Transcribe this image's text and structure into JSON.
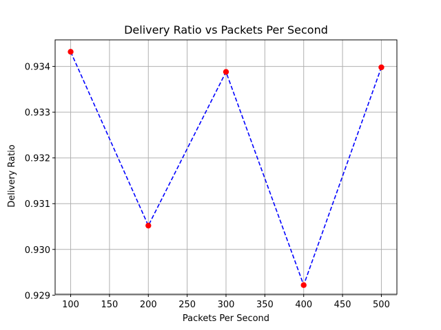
{
  "chart_data": {
    "type": "line",
    "title": "Delivery Ratio vs Packets Per Second",
    "xlabel": "Packets Per Second",
    "ylabel": "Delivery Ratio",
    "x": [
      100,
      200,
      300,
      400,
      500
    ],
    "series": [
      {
        "values": [
          0.93432,
          0.93052,
          0.93388,
          0.92922,
          0.93398
        ]
      }
    ],
    "xlim": [
      80,
      520
    ],
    "ylim": [
      0.92902,
      0.93458
    ],
    "xticks": [
      100,
      150,
      200,
      250,
      300,
      350,
      400,
      450,
      500
    ],
    "yticks": [
      0.929,
      0.93,
      0.931,
      0.932,
      0.933,
      0.934
    ],
    "ytick_labels": [
      "0.929",
      "0.930",
      "0.931",
      "0.932",
      "0.933",
      "0.934"
    ],
    "grid": true,
    "line_style": "dashed",
    "colors": {
      "line": "#0000ff",
      "marker": "#ff0000",
      "grid": "#b0b0b0"
    }
  }
}
